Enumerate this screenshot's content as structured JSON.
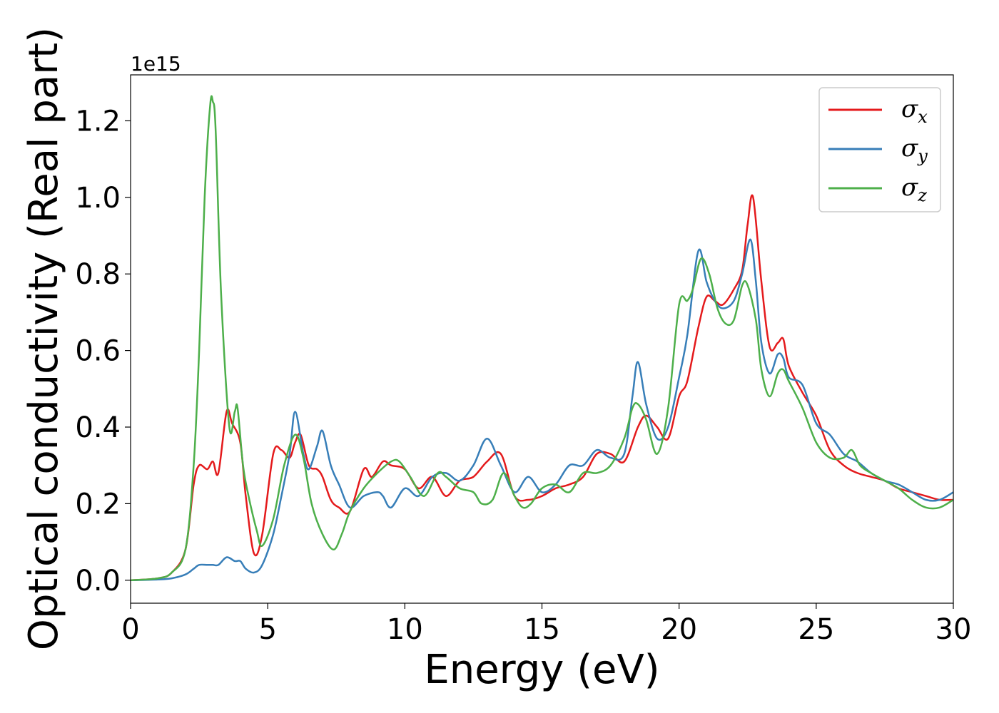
{
  "chart_data": {
    "type": "line",
    "title": "",
    "xlabel": "Energy (eV)",
    "ylabel": "Optical conductivity (Real part)",
    "y_offset_label": "1e15",
    "xlim": [
      0,
      30
    ],
    "ylim": [
      -0.06,
      1.32
    ],
    "x_ticks": [
      0,
      5,
      10,
      15,
      20,
      25,
      30
    ],
    "x_tick_labels": [
      "0",
      "5",
      "10",
      "15",
      "20",
      "25",
      "30"
    ],
    "y_ticks": [
      0.0,
      0.2,
      0.4,
      0.6,
      0.8,
      1.0,
      1.2
    ],
    "y_tick_labels": [
      "0.0",
      "0.2",
      "0.4",
      "0.6",
      "0.8",
      "1.0",
      "1.2"
    ],
    "grid": false,
    "legend_position": "top-right",
    "series": [
      {
        "name": "σ",
        "subscript": "x",
        "color": "#e41a1c",
        "x": [
          0,
          1,
          1.5,
          2,
          2.3,
          2.5,
          2.8,
          3,
          3.2,
          3.5,
          3.7,
          4,
          4.2,
          4.5,
          4.8,
          5.2,
          5.5,
          5.8,
          6,
          6.2,
          6.5,
          6.8,
          7,
          7.3,
          7.6,
          8,
          8.5,
          8.8,
          9.2,
          9.5,
          10,
          10.5,
          11,
          11.5,
          12,
          12.5,
          13,
          13.5,
          14,
          14.5,
          15,
          15.5,
          16,
          16.5,
          17,
          17.5,
          18,
          18.5,
          18.8,
          19.2,
          19.6,
          20,
          20.3,
          20.7,
          21,
          21.3,
          21.6,
          22,
          22.3,
          22.5,
          22.7,
          23,
          23.3,
          23.6,
          23.8,
          24,
          24.5,
          25,
          25.5,
          26,
          26.5,
          27,
          27.5,
          28,
          28.5,
          29,
          29.5,
          30
        ],
        "y": [
          0,
          0.005,
          0.02,
          0.08,
          0.25,
          0.3,
          0.29,
          0.31,
          0.28,
          0.44,
          0.41,
          0.36,
          0.22,
          0.07,
          0.12,
          0.33,
          0.34,
          0.32,
          0.36,
          0.38,
          0.3,
          0.29,
          0.27,
          0.21,
          0.19,
          0.18,
          0.29,
          0.27,
          0.31,
          0.3,
          0.29,
          0.24,
          0.27,
          0.22,
          0.26,
          0.27,
          0.31,
          0.33,
          0.22,
          0.21,
          0.22,
          0.24,
          0.25,
          0.27,
          0.33,
          0.33,
          0.31,
          0.4,
          0.43,
          0.4,
          0.37,
          0.48,
          0.52,
          0.66,
          0.74,
          0.73,
          0.72,
          0.76,
          0.81,
          0.93,
          1.0,
          0.78,
          0.61,
          0.62,
          0.63,
          0.56,
          0.49,
          0.43,
          0.34,
          0.3,
          0.28,
          0.27,
          0.26,
          0.24,
          0.23,
          0.22,
          0.21,
          0.21
        ]
      },
      {
        "name": "σ",
        "subscript": "y",
        "color": "#377eb8",
        "x": [
          0,
          1,
          1.5,
          2,
          2.3,
          2.5,
          2.8,
          3,
          3.2,
          3.5,
          3.8,
          4,
          4.2,
          4.5,
          4.8,
          5.2,
          5.5,
          5.8,
          6,
          6.3,
          6.5,
          6.8,
          7,
          7.3,
          7.6,
          8,
          8.5,
          9,
          9.2,
          9.5,
          10,
          10.5,
          11,
          11.5,
          12,
          12.5,
          13,
          13.5,
          14,
          14.5,
          15,
          15.5,
          16,
          16.5,
          17,
          17.5,
          18,
          18.3,
          18.5,
          18.8,
          19.2,
          19.6,
          20,
          20.3,
          20.7,
          21,
          21.3,
          21.6,
          22,
          22.3,
          22.6,
          22.8,
          23,
          23.3,
          23.6,
          23.8,
          24,
          24.5,
          25,
          25.5,
          26,
          26.5,
          27,
          27.5,
          28,
          28.5,
          29,
          29.5,
          30
        ],
        "y": [
          0,
          0.002,
          0.005,
          0.015,
          0.03,
          0.04,
          0.04,
          0.04,
          0.04,
          0.06,
          0.05,
          0.05,
          0.03,
          0.02,
          0.04,
          0.12,
          0.22,
          0.33,
          0.44,
          0.33,
          0.29,
          0.35,
          0.39,
          0.3,
          0.25,
          0.19,
          0.22,
          0.23,
          0.22,
          0.19,
          0.24,
          0.22,
          0.27,
          0.28,
          0.26,
          0.3,
          0.37,
          0.3,
          0.23,
          0.27,
          0.23,
          0.25,
          0.3,
          0.3,
          0.34,
          0.32,
          0.33,
          0.48,
          0.57,
          0.46,
          0.37,
          0.4,
          0.53,
          0.64,
          0.86,
          0.78,
          0.73,
          0.71,
          0.73,
          0.8,
          0.89,
          0.78,
          0.62,
          0.54,
          0.59,
          0.58,
          0.53,
          0.51,
          0.41,
          0.38,
          0.33,
          0.31,
          0.28,
          0.26,
          0.25,
          0.23,
          0.21,
          0.21,
          0.23
        ]
      },
      {
        "name": "σ",
        "subscript": "z",
        "color": "#4daf4a",
        "x": [
          0,
          1,
          1.5,
          2,
          2.3,
          2.5,
          2.7,
          2.9,
          3,
          3.1,
          3.3,
          3.6,
          3.8,
          3.9,
          4.1,
          4.3,
          4.6,
          4.8,
          5.2,
          5.6,
          6,
          6.3,
          6.6,
          7,
          7.4,
          7.7,
          8,
          8.5,
          9,
          9.5,
          9.8,
          10.2,
          10.7,
          11.2,
          11.5,
          12,
          12.5,
          12.8,
          13.2,
          13.6,
          14,
          14.3,
          14.6,
          15,
          15.5,
          16,
          16.5,
          17,
          17.5,
          18,
          18.3,
          18.5,
          18.8,
          19.2,
          19.6,
          20,
          20.3,
          20.5,
          20.8,
          21.1,
          21.4,
          21.7,
          22,
          22.3,
          22.5,
          22.8,
          23,
          23.3,
          23.6,
          23.8,
          24,
          24.5,
          25,
          25.5,
          26,
          26.3,
          26.6,
          27,
          27.5,
          28,
          28.5,
          29,
          29.5,
          30
        ],
        "y": [
          0,
          0.005,
          0.02,
          0.08,
          0.3,
          0.6,
          1.0,
          1.24,
          1.25,
          1.18,
          0.75,
          0.4,
          0.44,
          0.45,
          0.3,
          0.22,
          0.13,
          0.09,
          0.16,
          0.3,
          0.38,
          0.32,
          0.2,
          0.12,
          0.08,
          0.12,
          0.18,
          0.24,
          0.28,
          0.31,
          0.31,
          0.27,
          0.22,
          0.28,
          0.27,
          0.24,
          0.23,
          0.2,
          0.21,
          0.28,
          0.22,
          0.19,
          0.2,
          0.24,
          0.25,
          0.23,
          0.28,
          0.28,
          0.3,
          0.37,
          0.45,
          0.46,
          0.42,
          0.33,
          0.45,
          0.72,
          0.73,
          0.76,
          0.84,
          0.8,
          0.71,
          0.67,
          0.68,
          0.77,
          0.77,
          0.68,
          0.55,
          0.48,
          0.54,
          0.55,
          0.52,
          0.45,
          0.36,
          0.32,
          0.32,
          0.34,
          0.3,
          0.28,
          0.26,
          0.24,
          0.21,
          0.19,
          0.19,
          0.21
        ]
      }
    ]
  }
}
